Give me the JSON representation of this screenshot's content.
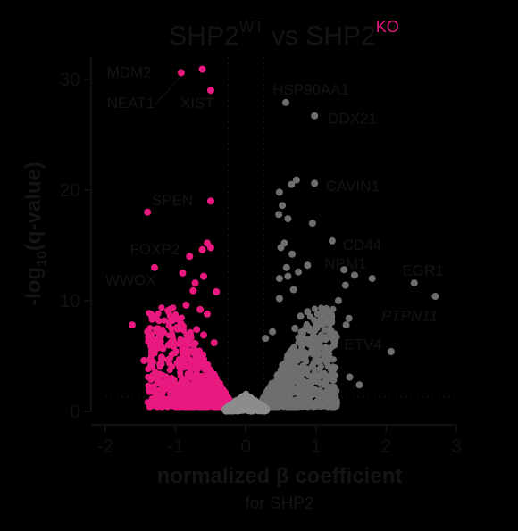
{
  "chart_data": {
    "type": "scatter",
    "title": {
      "prefix": "SHP2",
      "wt": "WT",
      "middle": " vs SHP2",
      "ko": "KO"
    },
    "xlabel": "normalized β coefficient",
    "xlabel_sub": "for SHP2",
    "ylabel": {
      "pre": "-log",
      "sub": "10",
      "post": "(q-value)"
    },
    "xlim": [
      -2,
      3
    ],
    "ylim": [
      0,
      32
    ],
    "x_ticks": [
      "-2",
      "-1",
      "0",
      "1",
      "2",
      "3"
    ],
    "y_ticks": [
      "0",
      "10",
      "20",
      "30"
    ],
    "thresholds": {
      "x": [
        -0.25,
        0.25
      ],
      "y": 1.3
    },
    "colors": {
      "ko_high": "#e8197f",
      "wt_high": "#6e6e6e",
      "ns": "#8c8c8c",
      "axis": "#111111"
    },
    "series": [
      {
        "key": "pink",
        "points": [
          [
            -0.92,
            30.6
          ],
          [
            -0.62,
            30.9
          ],
          [
            -0.5,
            29.0
          ],
          [
            -0.5,
            19.0
          ],
          [
            -1.4,
            18.0
          ],
          [
            -0.55,
            15.2
          ],
          [
            -0.5,
            14.8
          ],
          [
            -0.62,
            14.6
          ],
          [
            -0.8,
            14.0
          ],
          [
            -1.3,
            13.0
          ],
          [
            -0.72,
            11.6
          ],
          [
            -0.42,
            10.8
          ],
          [
            -1.62,
            7.8
          ],
          [
            -1.4,
            7.2
          ],
          [
            -0.9,
            12.5
          ],
          [
            -0.6,
            12.2
          ],
          [
            -0.75,
            10.9
          ],
          [
            -0.85,
            9.6
          ],
          [
            -0.65,
            9.2
          ],
          [
            -0.55,
            8.8
          ],
          [
            -1.05,
            8.2
          ],
          [
            -0.98,
            7.6
          ],
          [
            -0.7,
            7.4
          ],
          [
            -0.6,
            6.9
          ],
          [
            -1.1,
            6.0
          ],
          [
            -1.2,
            4.9
          ],
          [
            -1.35,
            4.2
          ],
          [
            -1.45,
            4.6
          ],
          [
            -0.9,
            5.6
          ],
          [
            -0.45,
            6.2
          ]
        ]
      },
      {
        "key": "gray",
        "points": [
          [
            0.57,
            27.9
          ],
          [
            0.98,
            26.7
          ],
          [
            0.65,
            20.5
          ],
          [
            0.72,
            20.9
          ],
          [
            0.98,
            20.6
          ],
          [
            0.48,
            19.8
          ],
          [
            0.52,
            18.6
          ],
          [
            0.47,
            17.8
          ],
          [
            0.6,
            17.4
          ],
          [
            0.95,
            17.0
          ],
          [
            0.55,
            15.2
          ],
          [
            1.23,
            15.4
          ],
          [
            0.5,
            14.8
          ],
          [
            0.66,
            14.2
          ],
          [
            0.58,
            13.0
          ],
          [
            0.88,
            13.2
          ],
          [
            0.6,
            12.2
          ],
          [
            0.48,
            12.0
          ],
          [
            1.4,
            12.8
          ],
          [
            1.55,
            12.3
          ],
          [
            0.75,
            12.6
          ],
          [
            1.8,
            12.0
          ],
          [
            1.42,
            11.4
          ],
          [
            0.68,
            11.0
          ],
          [
            2.4,
            11.6
          ],
          [
            2.7,
            10.4
          ],
          [
            0.48,
            10.2
          ],
          [
            1.32,
            10.0
          ],
          [
            1.47,
            8.4
          ],
          [
            1.43,
            7.8
          ],
          [
            1.28,
            6.8
          ],
          [
            2.07,
            5.4
          ],
          [
            0.38,
            7.2
          ],
          [
            0.28,
            6.6
          ],
          [
            0.7,
            7.5
          ],
          [
            1.48,
            3.1
          ],
          [
            1.62,
            2.4
          ],
          [
            0.98,
            5.8
          ],
          [
            1.15,
            5.2
          ],
          [
            0.85,
            6.2
          ],
          [
            0.78,
            8.6
          ],
          [
            0.88,
            9.0
          ]
        ]
      }
    ],
    "clusters": [
      {
        "key": "pink",
        "side": -1,
        "count": 900,
        "xmin": 0.22,
        "xmax": 1.4,
        "ymax": 9.0
      },
      {
        "key": "gray",
        "side": 1,
        "count": 900,
        "xmin": 0.22,
        "xmax": 1.3,
        "ymax": 9.0
      },
      {
        "key": "ns",
        "side": 0,
        "count": 550,
        "xmin": 0,
        "xmax": 0.3,
        "ymax": 1.6
      }
    ],
    "annotations": [
      {
        "text": "MDM2",
        "x": -1.98,
        "y": 30.2,
        "anchor": "start",
        "italic": false
      },
      {
        "text": "NEAT1",
        "x": -1.98,
        "y": 27.4,
        "anchor": "start",
        "italic": false
      },
      {
        "text": "XIST",
        "x": -0.93,
        "y": 27.4,
        "anchor": "start",
        "italic": false
      },
      {
        "text": "HSP90AA1",
        "x": 0.38,
        "y": 28.6,
        "anchor": "start",
        "italic": false
      },
      {
        "text": "DDX21",
        "x": 1.17,
        "y": 26.0,
        "anchor": "start",
        "italic": false
      },
      {
        "text": "CAVIN1",
        "x": 1.14,
        "y": 19.9,
        "anchor": "start",
        "italic": false
      },
      {
        "text": "SPEN",
        "x": -1.34,
        "y": 18.6,
        "anchor": "start",
        "italic": false
      },
      {
        "text": "FOXP2",
        "x": -1.65,
        "y": 14.2,
        "anchor": "start",
        "italic": false
      },
      {
        "text": "CD44",
        "x": 1.38,
        "y": 14.6,
        "anchor": "start",
        "italic": false
      },
      {
        "text": "NPM1",
        "x": 1.12,
        "y": 12.9,
        "anchor": "start",
        "italic": false
      },
      {
        "text": "EGR1",
        "x": 2.23,
        "y": 12.3,
        "anchor": "start",
        "italic": false
      },
      {
        "text": "WWOX",
        "x": -2.0,
        "y": 11.4,
        "anchor": "start",
        "italic": false
      },
      {
        "text": "PTPN11",
        "x": 1.93,
        "y": 8.2,
        "anchor": "start",
        "italic": true
      },
      {
        "text": "ETV4",
        "x": 1.4,
        "y": 5.6,
        "anchor": "start",
        "italic": false
      }
    ]
  }
}
